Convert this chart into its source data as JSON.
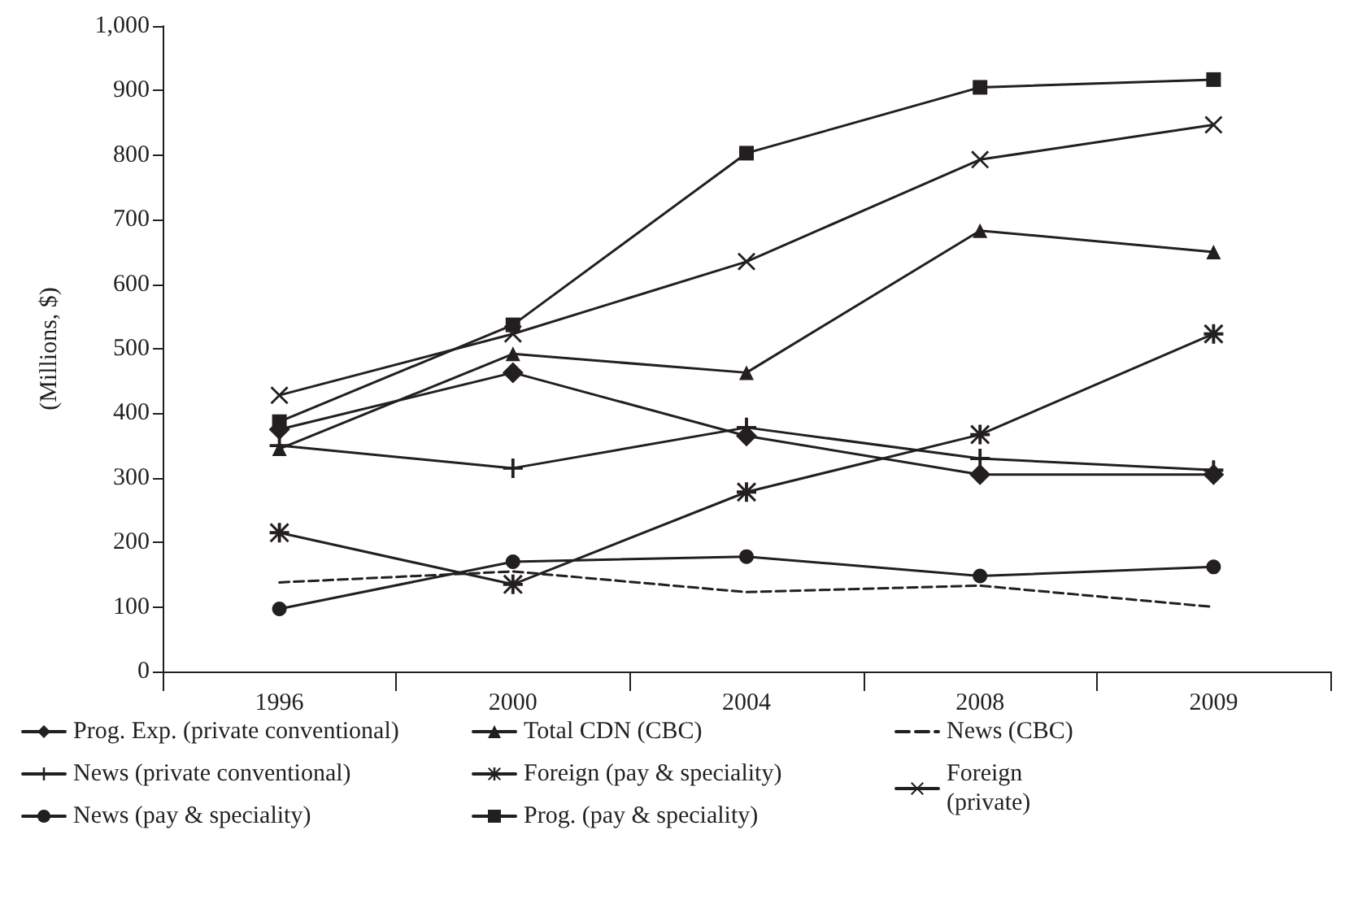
{
  "chart_data": {
    "type": "line",
    "ylabel": "(Millions, $)",
    "categories": [
      "1996",
      "2000",
      "2004",
      "2008",
      "2009"
    ],
    "ylim": [
      0,
      1000
    ],
    "yticks": [
      0,
      100,
      200,
      300,
      400,
      500,
      600,
      700,
      800,
      900,
      {
        "value": 1000,
        "label": "1,000"
      }
    ],
    "grid": false,
    "legend": "bottom",
    "series": [
      {
        "name": "Prog. Exp. (private conventional)",
        "color": "#231f20",
        "marker": "diamond",
        "line_style": "solid",
        "values": [
          375,
          463,
          365,
          305,
          305
        ]
      },
      {
        "name": "Total CDN (CBC)",
        "color": "#231f20",
        "marker": "triangle",
        "line_style": "solid",
        "values": [
          345,
          492,
          463,
          683,
          650
        ]
      },
      {
        "name": "News (CBC)",
        "color": "#231f20",
        "marker": "none",
        "line_style": "dashed",
        "values": [
          138,
          155,
          123,
          133,
          100
        ]
      },
      {
        "name": "News (private conventional)",
        "color": "#231f20",
        "marker": "cross",
        "line_style": "solid",
        "values": [
          350,
          315,
          378,
          330,
          312
        ]
      },
      {
        "name": "Foreign (pay & speciality)",
        "color": "#231f20",
        "marker": "star",
        "line_style": "solid",
        "values": [
          215,
          135,
          278,
          367,
          523
        ]
      },
      {
        "name": "Foreign (private)",
        "color": "#231f20",
        "marker": "x",
        "line_style": "solid",
        "values": [
          428,
          523,
          635,
          793,
          847
        ]
      },
      {
        "name": "News (pay & speciality)",
        "color": "#231f20",
        "marker": "circle",
        "line_style": "solid",
        "values": [
          97,
          170,
          178,
          148,
          162
        ]
      },
      {
        "name": "Prog. (pay & speciality)",
        "color": "#231f20",
        "marker": "square",
        "line_style": "solid",
        "values": [
          387,
          537,
          803,
          905,
          917
        ]
      }
    ]
  }
}
